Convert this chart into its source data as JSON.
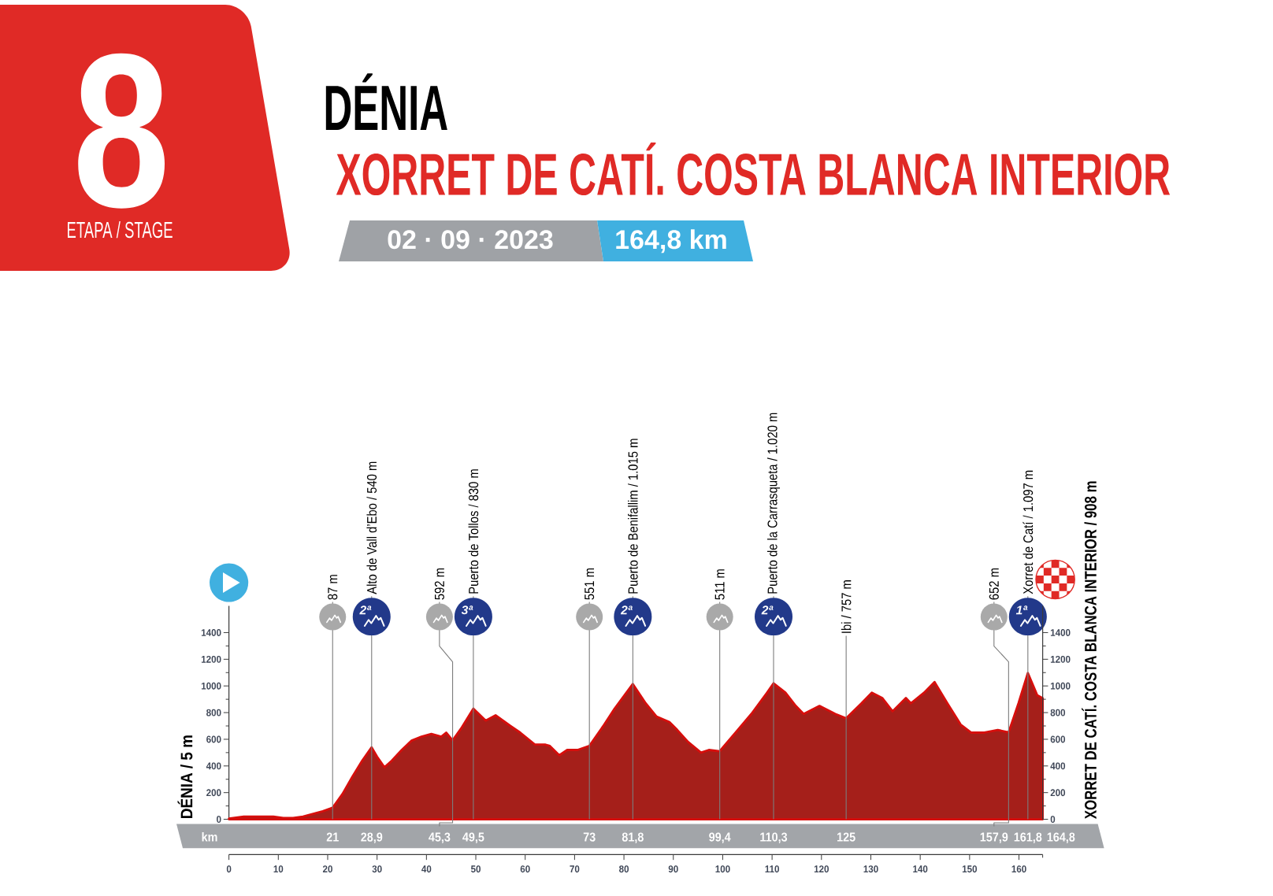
{
  "chart_data": {
    "type": "area",
    "title": "DÉNIA",
    "subtitle": "XORRET DE CATÍ. COSTA BLANCA INTERIOR",
    "ylabel": "DÉNIA / 5 m",
    "y2label": "XORRET DE CATÍ. COSTA BLANCA INTERIOR / 908 m",
    "annotations": [
      "8",
      "ETAPA / STAGE",
      "02 · 09 · 2023",
      "164,8 km",
      {
        "text": "2ª",
        "x": 28.9,
        "y": 1520
      },
      {
        "text": "3ª",
        "x": 49.5,
        "y": 1520
      },
      {
        "text": "2ª",
        "x": 81.8,
        "y": 1520
      },
      {
        "text": "2ª",
        "x": 110.3,
        "y": 1520
      },
      {
        "text": "1ª",
        "x": 161.8,
        "y": 1520
      },
      "km",
      "21",
      "28,9",
      "45,3",
      "49,5",
      "73",
      "81,8",
      "99,4",
      "110,3",
      "125",
      "157,9",
      "161,8",
      "164,8"
    ],
    "x": [
      0,
      3,
      6,
      9,
      11,
      13,
      15,
      17,
      19,
      21,
      23,
      25,
      27,
      28.9,
      30,
      31.5,
      33,
      35,
      37,
      39,
      41,
      43,
      44,
      45.3,
      47,
      49.5,
      52,
      54,
      57,
      59,
      62,
      64,
      65,
      66.9,
      68.5,
      70.6,
      73,
      76,
      78.1,
      81.8,
      84.4,
      86.6,
      89.2,
      90.8,
      93,
      95.6,
      97.2,
      99.4,
      102.6,
      105.8,
      109,
      110.3,
      112.7,
      114.8,
      116.4,
      119.6,
      122.8,
      125,
      128.1,
      130.2,
      132.3,
      134.4,
      137.1,
      138.1,
      140.8,
      142.9,
      145.5,
      148.2,
      150.3,
      153,
      155.7,
      157.9,
      159.9,
      161.8,
      163.7,
      164.8
    ],
    "series": [
      {
        "color": "#a51f1a",
        "values": [
          5,
          20,
          20,
          20,
          10,
          10,
          20,
          40,
          60,
          87,
          190,
          320,
          440,
          540,
          470,
          390,
          440,
          520,
          590,
          620,
          640,
          620,
          650,
          592,
          680,
          830,
          740,
          780,
          700,
          650,
          560,
          560,
          550,
          480,
          520,
          520,
          551,
          710,
          830,
          1015,
          870,
          770,
          730,
          670,
          580,
          500,
          520,
          511,
          650,
          790,
          950,
          1020,
          950,
          850,
          790,
          850,
          790,
          757,
          870,
          950,
          910,
          810,
          910,
          870,
          950,
          1030,
          870,
          710,
          650,
          650,
          670,
          652,
          870,
          1097,
          930,
          908
        ]
      }
    ],
    "xlim": [
      0,
      164.8
    ],
    "xticks": [
      0,
      10,
      20,
      30,
      40,
      50,
      60,
      70,
      80,
      90,
      100,
      110,
      120,
      130,
      140,
      150,
      160,
      {
        "value": 164.8,
        "label": null
      }
    ],
    "ylim": [
      0,
      1600
    ],
    "yticks": [
      0,
      {
        "value": 100,
        "label": null
      },
      200,
      {
        "value": 300,
        "label": null
      },
      400,
      {
        "value": 500,
        "label": null
      },
      600,
      {
        "value": 700,
        "label": null
      },
      800,
      {
        "value": 900,
        "label": null
      },
      1000,
      {
        "value": 1100,
        "label": null
      },
      1200,
      {
        "value": 1300,
        "label": null
      },
      1400
    ],
    "y2lim": [
      0,
      1600
    ],
    "y2ticks": [
      0,
      {
        "value": 100,
        "label": null
      },
      200,
      {
        "value": 300,
        "label": null
      },
      400,
      {
        "value": 500,
        "label": null
      },
      600,
      {
        "value": 700,
        "label": null
      },
      800,
      {
        "value": 900,
        "label": null
      },
      1000,
      {
        "value": 1100,
        "label": null
      },
      1200,
      {
        "value": 1300,
        "label": null
      },
      1400
    ],
    "ref_lines": [
      {
        "axis": "x",
        "value": 21,
        "label": "87 m",
        "color": "#7d7d7d"
      },
      {
        "axis": "x",
        "value": 28.9,
        "label": "Alto de Vall d’Ebo / 540 m",
        "color": "#7d7d7d"
      },
      {
        "axis": "x",
        "value": 45.3,
        "label": "592 m",
        "color": "#7d7d7d"
      },
      {
        "axis": "x",
        "value": 49.5,
        "label": "Puerto de Tollos / 830 m",
        "color": "#7d7d7d"
      },
      {
        "axis": "x",
        "value": 73,
        "label": "551 m",
        "color": "#7d7d7d"
      },
      {
        "axis": "x",
        "value": 81.8,
        "label": "Puerto de Benifallim / 1.015 m",
        "color": "#7d7d7d"
      },
      {
        "axis": "x",
        "value": 99.4,
        "label": "511 m",
        "color": "#7d7d7d"
      },
      {
        "axis": "x",
        "value": 110.3,
        "label": "Puerto de la Carrasqueta / 1.020 m",
        "color": "#7d7d7d"
      },
      {
        "axis": "x",
        "value": 125,
        "label": "Ibi / 757 m",
        "color": "#7d7d7d"
      },
      {
        "axis": "x",
        "value": 157.9,
        "label": "652 m",
        "color": "#7d7d7d"
      },
      {
        "axis": "x",
        "value": 161.8,
        "label": "Xorret de Catí / 1.097 m",
        "color": "#7d7d7d"
      }
    ]
  }
}
